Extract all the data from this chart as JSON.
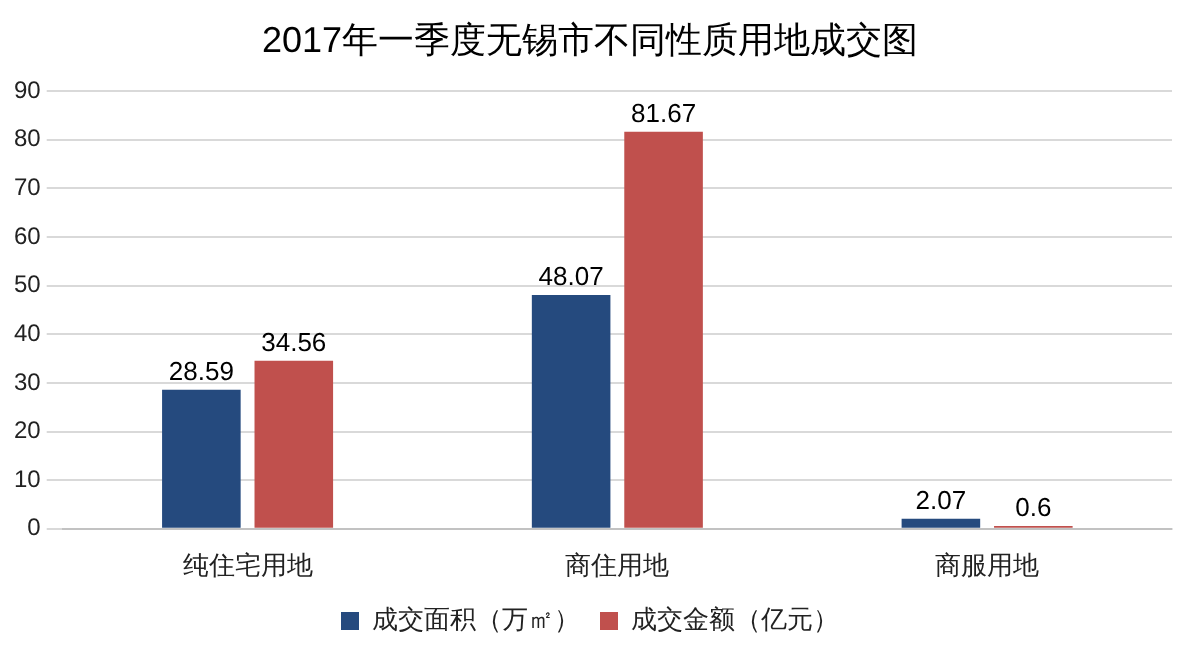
{
  "chart_data": {
    "type": "bar",
    "title": "2017年一季度无锡市不同性质用地成交图",
    "categories": [
      "纯住宅用地",
      "商住用地",
      "商服用地"
    ],
    "series": [
      {
        "name": "成交面积（万㎡）",
        "color": "#254a7e",
        "values": [
          28.59,
          48.07,
          2.07
        ]
      },
      {
        "name": "成交金额（亿元）",
        "color": "#c0504d",
        "values": [
          34.56,
          81.67,
          0.6
        ]
      }
    ],
    "ylim": [
      0,
      90
    ],
    "yticks": [
      0,
      10,
      20,
      30,
      40,
      50,
      60,
      70,
      80,
      90
    ],
    "grid": "y",
    "legend": "bottom",
    "data_labels": true
  }
}
